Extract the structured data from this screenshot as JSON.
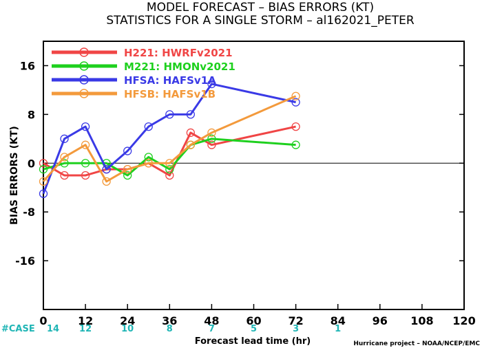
{
  "title_line1": "MODEL FORECAST – BIAS ERRORS (KT)",
  "title_line2": "STATISTICS FOR A SINGLE STORM – al162021_PETER",
  "credit": "Hurricane project – NOAA/NCEP/EMC",
  "case_label": "#CASE",
  "chart_data": {
    "type": "line",
    "xlabel": "Forecast lead time (hr)",
    "ylabel": "BIAS ERRORS (KT)",
    "xlim": [
      0,
      120
    ],
    "ylim": [
      -24,
      20
    ],
    "xticks": [
      0,
      12,
      24,
      36,
      48,
      60,
      72,
      84,
      96,
      108,
      120
    ],
    "yticks": [
      -16,
      -8,
      0,
      8,
      16
    ],
    "zero_line": true,
    "legend_position": "top-left",
    "cases": [
      {
        "x": 0,
        "n": "14"
      },
      {
        "x": 12,
        "n": "12"
      },
      {
        "x": 24,
        "n": "10"
      },
      {
        "x": 36,
        "n": "8"
      },
      {
        "x": 48,
        "n": "7"
      },
      {
        "x": 60,
        "n": "5"
      },
      {
        "x": 72,
        "n": "3"
      },
      {
        "x": 84,
        "n": "1"
      }
    ],
    "series": [
      {
        "name": "H221: HWRFv2021",
        "color": "#f04545",
        "points": [
          [
            0,
            0
          ],
          [
            6,
            -2
          ],
          [
            12,
            -2
          ],
          [
            18,
            -1
          ],
          [
            24,
            -1
          ],
          [
            30,
            0
          ],
          [
            36,
            -2
          ],
          [
            42,
            5
          ],
          [
            48,
            3
          ],
          [
            72,
            6
          ]
        ]
      },
      {
        "name": "M221: HMONv2021",
        "color": "#1ed01e",
        "points": [
          [
            0,
            -1
          ],
          [
            6,
            0
          ],
          [
            12,
            0
          ],
          [
            18,
            0
          ],
          [
            24,
            -2
          ],
          [
            30,
            1
          ],
          [
            36,
            -1
          ],
          [
            42,
            3
          ],
          [
            48,
            4
          ],
          [
            72,
            3
          ]
        ]
      },
      {
        "name": "HFSA: HAFSv1A",
        "color": "#3a3ae6",
        "points": [
          [
            0,
            -5
          ],
          [
            6,
            4
          ],
          [
            12,
            6
          ],
          [
            18,
            -1
          ],
          [
            24,
            2
          ],
          [
            30,
            6
          ],
          [
            36,
            8
          ],
          [
            42,
            8
          ],
          [
            48,
            13
          ],
          [
            72,
            10
          ]
        ]
      },
      {
        "name": "HFSB: HAFSv1B",
        "color": "#f39a3c",
        "points": [
          [
            0,
            -3
          ],
          [
            6,
            1
          ],
          [
            12,
            3
          ],
          [
            18,
            -3
          ],
          [
            24,
            -1
          ],
          [
            30,
            0
          ],
          [
            36,
            0
          ],
          [
            42,
            3
          ],
          [
            48,
            5
          ],
          [
            72,
            11
          ]
        ]
      }
    ]
  }
}
